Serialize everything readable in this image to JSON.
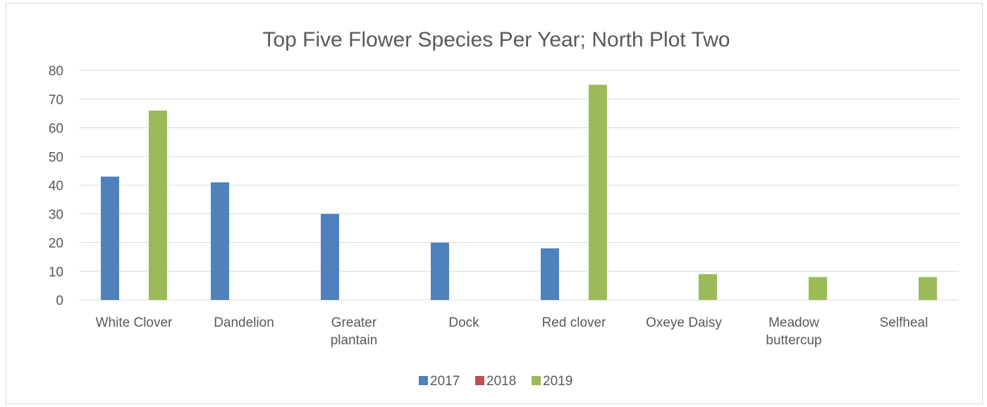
{
  "chart_data": {
    "type": "bar",
    "title": "Top Five Flower Species Per Year; North Plot Two",
    "xlabel": "",
    "ylabel": "",
    "ylim": [
      0,
      80
    ],
    "yticks": [
      0,
      10,
      20,
      30,
      40,
      50,
      60,
      70,
      80
    ],
    "grid": true,
    "legend_position": "bottom",
    "categories": [
      [
        "White Clover"
      ],
      [
        "Dandelion"
      ],
      [
        "Greater",
        "plantain"
      ],
      [
        "Dock"
      ],
      [
        "Red clover"
      ],
      [
        "Oxeye Daisy"
      ],
      [
        "Meadow",
        "buttercup"
      ],
      [
        "Selfheal"
      ]
    ],
    "series": [
      {
        "name": "2017",
        "color": "#4f81bd",
        "values": [
          43,
          41,
          30,
          20,
          18,
          0,
          0,
          0
        ]
      },
      {
        "name": "2018",
        "color": "#c0504d",
        "values": [
          0,
          0,
          0,
          0,
          0,
          0,
          0,
          0
        ]
      },
      {
        "name": "2019",
        "color": "#9bbb59",
        "values": [
          66,
          0,
          0,
          0,
          75,
          9,
          8,
          8
        ]
      }
    ]
  }
}
